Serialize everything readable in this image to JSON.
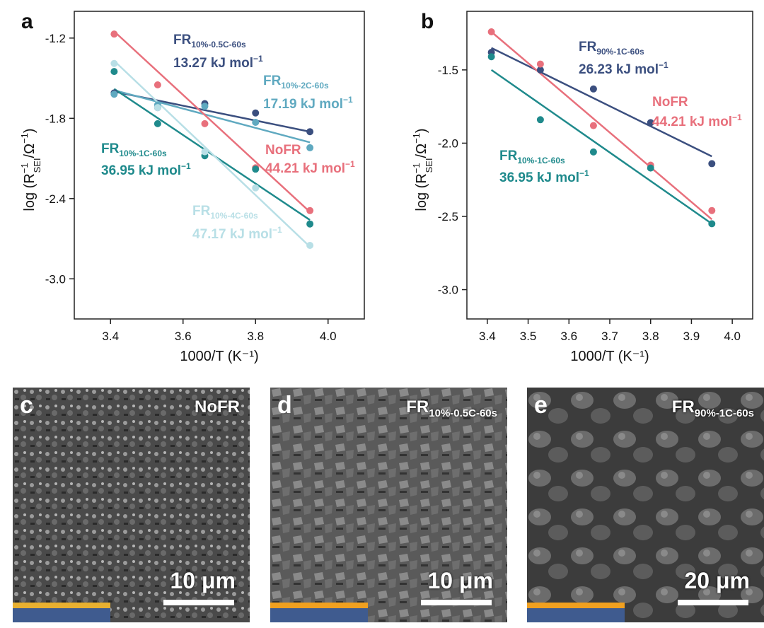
{
  "chart_data": [
    {
      "panel": "a",
      "type": "scatter",
      "xlabel": "1000/T (K⁻¹)",
      "ylabel_main": "log (R",
      "ylabel_sup": "−1",
      "ylabel_sub": "SEI",
      "ylabel_tail": "/Ω",
      "ylabel_tail_sup": "−1",
      "ylabel_close": ")",
      "xlim": [
        3.3,
        4.1
      ],
      "ylim": [
        -3.3,
        -1.0
      ],
      "xticks": [
        3.4,
        3.6,
        3.8,
        4.0
      ],
      "xtick_labels": [
        "3.4",
        "3.6",
        "3.8",
        "4.0"
      ],
      "yticks": [
        -1.2,
        -1.8,
        -2.4,
        -3.0
      ],
      "ytick_labels": [
        "-1.2",
        "-1.8",
        "-2.4",
        "-3.0"
      ],
      "series": [
        {
          "name_main": "FR",
          "name_sub": "10%-0.5C-60s",
          "energy": "13.27 kJ mol",
          "energy_sup": "−1",
          "color": "#3b4f7f",
          "x": [
            3.41,
            3.53,
            3.66,
            3.8,
            3.95
          ],
          "y": [
            -1.61,
            -1.72,
            -1.69,
            -1.76,
            -1.9
          ],
          "fit": [
            [
              3.41,
              -1.6
            ],
            [
              3.95,
              -1.9
            ]
          ]
        },
        {
          "name_main": "FR",
          "name_sub": "10%-2C-60s",
          "energy": "17.19 kJ mol",
          "energy_sup": "−1",
          "color": "#5fa9c0",
          "x": [
            3.41,
            3.53,
            3.66,
            3.8,
            3.95
          ],
          "y": [
            -1.62,
            -1.7,
            -1.71,
            -1.83,
            -2.02
          ],
          "fit": [
            [
              3.41,
              -1.59
            ],
            [
              3.95,
              -1.98
            ]
          ]
        },
        {
          "name_main": "NoFR",
          "name_sub": "",
          "energy": "44.21 kJ mol",
          "energy_sup": "−1",
          "color": "#e8707c",
          "x": [
            3.41,
            3.53,
            3.66,
            3.8,
            3.95
          ],
          "y": [
            -1.17,
            -1.55,
            -1.84,
            -2.17,
            -2.49
          ],
          "fit": [
            [
              3.41,
              -1.15
            ],
            [
              3.95,
              -2.5
            ]
          ]
        },
        {
          "name_main": "FR",
          "name_sub": "10%-1C-60s",
          "energy": "36.95 kJ mol",
          "energy_sup": "−1",
          "color": "#1f8a8c",
          "x": [
            3.41,
            3.53,
            3.66,
            3.8,
            3.95
          ],
          "y": [
            -1.45,
            -1.84,
            -2.08,
            -2.18,
            -2.59
          ],
          "fit": [
            [
              3.41,
              -1.58
            ],
            [
              3.95,
              -2.56
            ]
          ]
        },
        {
          "name_main": "FR",
          "name_sub": "10%-4C-60s",
          "energy": "47.17 kJ mol",
          "energy_sup": "−1",
          "color": "#b8dfe6",
          "x": [
            3.41,
            3.53,
            3.66,
            3.8,
            3.95
          ],
          "y": [
            -1.39,
            -1.72,
            -2.05,
            -2.32,
            -2.75
          ],
          "fit": [
            [
              3.41,
              -1.37
            ],
            [
              3.95,
              -2.76
            ]
          ]
        }
      ]
    },
    {
      "panel": "b",
      "type": "scatter",
      "xlabel": "1000/T (K⁻¹)",
      "ylabel_main": "log (R",
      "ylabel_sup": "−1",
      "ylabel_sub": "SEI",
      "ylabel_tail": "/Ω",
      "ylabel_tail_sup": "−1",
      "ylabel_close": ")",
      "xlim": [
        3.35,
        4.05
      ],
      "ylim": [
        -3.2,
        -1.1
      ],
      "xticks": [
        3.4,
        3.5,
        3.6,
        3.7,
        3.8,
        3.9,
        4.0
      ],
      "xtick_labels": [
        "3.4",
        "3.5",
        "3.6",
        "3.7",
        "3.8",
        "3.9",
        "4.0"
      ],
      "yticks": [
        -1.5,
        -2.0,
        -2.5,
        -3.0
      ],
      "ytick_labels": [
        "-1.5",
        "-2.0",
        "-2.5",
        "-3.0"
      ],
      "series": [
        {
          "name_main": "FR",
          "name_sub": "90%-1C-60s",
          "energy": "26.23 kJ mol",
          "energy_sup": "−1",
          "color": "#3b4f7f",
          "x": [
            3.41,
            3.53,
            3.66,
            3.8,
            3.95
          ],
          "y": [
            -1.38,
            -1.5,
            -1.63,
            -1.86,
            -2.14
          ],
          "fit": [
            [
              3.41,
              -1.35
            ],
            [
              3.95,
              -2.09
            ]
          ]
        },
        {
          "name_main": "NoFR",
          "name_sub": "",
          "energy": "44.21 kJ mol",
          "energy_sup": "−1",
          "color": "#e8707c",
          "x": [
            3.41,
            3.53,
            3.66,
            3.8,
            3.95
          ],
          "y": [
            -1.24,
            -1.46,
            -1.88,
            -2.15,
            -2.46
          ],
          "fit": [
            [
              3.41,
              -1.24
            ],
            [
              3.95,
              -2.52
            ]
          ]
        },
        {
          "name_main": "FR",
          "name_sub": "10%-1C-60s",
          "energy": "36.95 kJ mol",
          "energy_sup": "−1",
          "color": "#1f8a8c",
          "x": [
            3.41,
            3.53,
            3.66,
            3.8,
            3.95
          ],
          "y": [
            -1.41,
            -1.84,
            -2.06,
            -2.17,
            -2.55
          ],
          "fit": [
            [
              3.41,
              -1.5
            ],
            [
              3.95,
              -2.55
            ]
          ]
        }
      ]
    }
  ],
  "panels": {
    "a": "a",
    "b": "b",
    "c": {
      "letter": "c",
      "label": "NoFR",
      "scale": "10 μm"
    },
    "d": {
      "letter": "d",
      "label_main": "FR",
      "label_sub": "10%-0.5C-60s",
      "scale": "10 μm"
    },
    "e": {
      "letter": "e",
      "label_main": "FR",
      "label_sub": "90%-1C-60s",
      "scale": "20 μm"
    }
  },
  "colors": {
    "axis": "#222222",
    "sem_dark": "#3a3a3a",
    "sem_light": "#9a9a9a",
    "electrode_blue": "#3f5b8f",
    "coating_orange": "#f0a020"
  }
}
